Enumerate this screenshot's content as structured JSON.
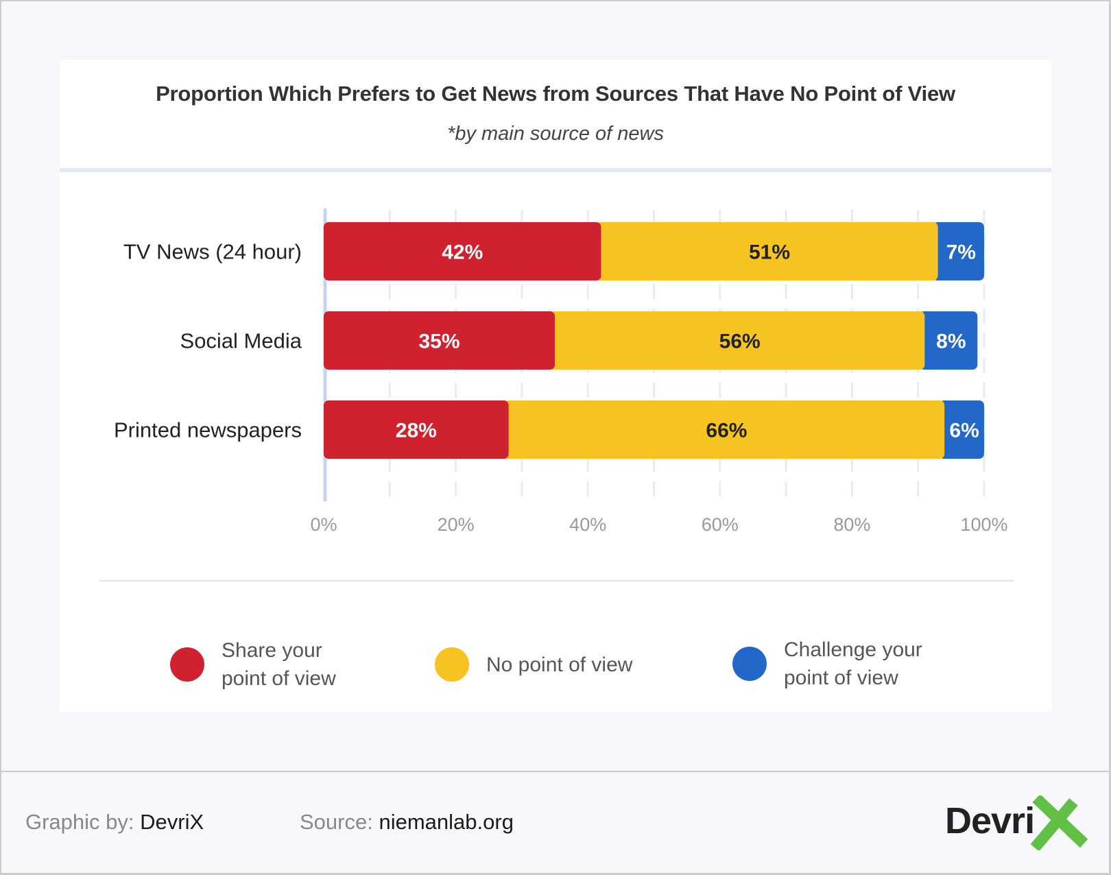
{
  "chart_data": {
    "type": "bar",
    "orientation": "horizontal",
    "stacked": true,
    "title": "Proportion Which Prefers to Get News from Sources That Have No Point of View",
    "subtitle": "*by main source of news",
    "xlabel": "",
    "ylabel": "",
    "xlim": [
      0,
      100
    ],
    "x_ticks": [
      "0%",
      "20%",
      "40%",
      "60%",
      "80%",
      "100%"
    ],
    "x_tick_values": [
      0,
      20,
      40,
      60,
      80,
      100
    ],
    "grid": true,
    "legend_position": "bottom",
    "categories": [
      "TV News (24 hour)",
      "Social Media",
      "Printed newspapers"
    ],
    "series": [
      {
        "name": "Share your point of view",
        "color": "#cf222e",
        "label_color": "#ffffff",
        "values": [
          42,
          35,
          28
        ]
      },
      {
        "name": "No point of view",
        "color": "#f7c320",
        "label_color": "#222222",
        "values": [
          51,
          56,
          66
        ]
      },
      {
        "name": "Challenge your point of view",
        "color": "#2367c8",
        "label_color": "#ffffff",
        "values": [
          7,
          8,
          6
        ]
      }
    ]
  },
  "legend": [
    {
      "label": "Share your\npoint of view",
      "color": "#cf222e"
    },
    {
      "label": "No point of view",
      "color": "#f7c320"
    },
    {
      "label": "Challenge your\npoint of view",
      "color": "#2367c8"
    }
  ],
  "footer": {
    "graphic_by_label": "Graphic by:",
    "graphic_by_value": "DevriX",
    "source_label": "Source:",
    "source_value": "niemanlab.org",
    "logo_text": "Devri",
    "logo_accent_color": "#62bf45"
  }
}
